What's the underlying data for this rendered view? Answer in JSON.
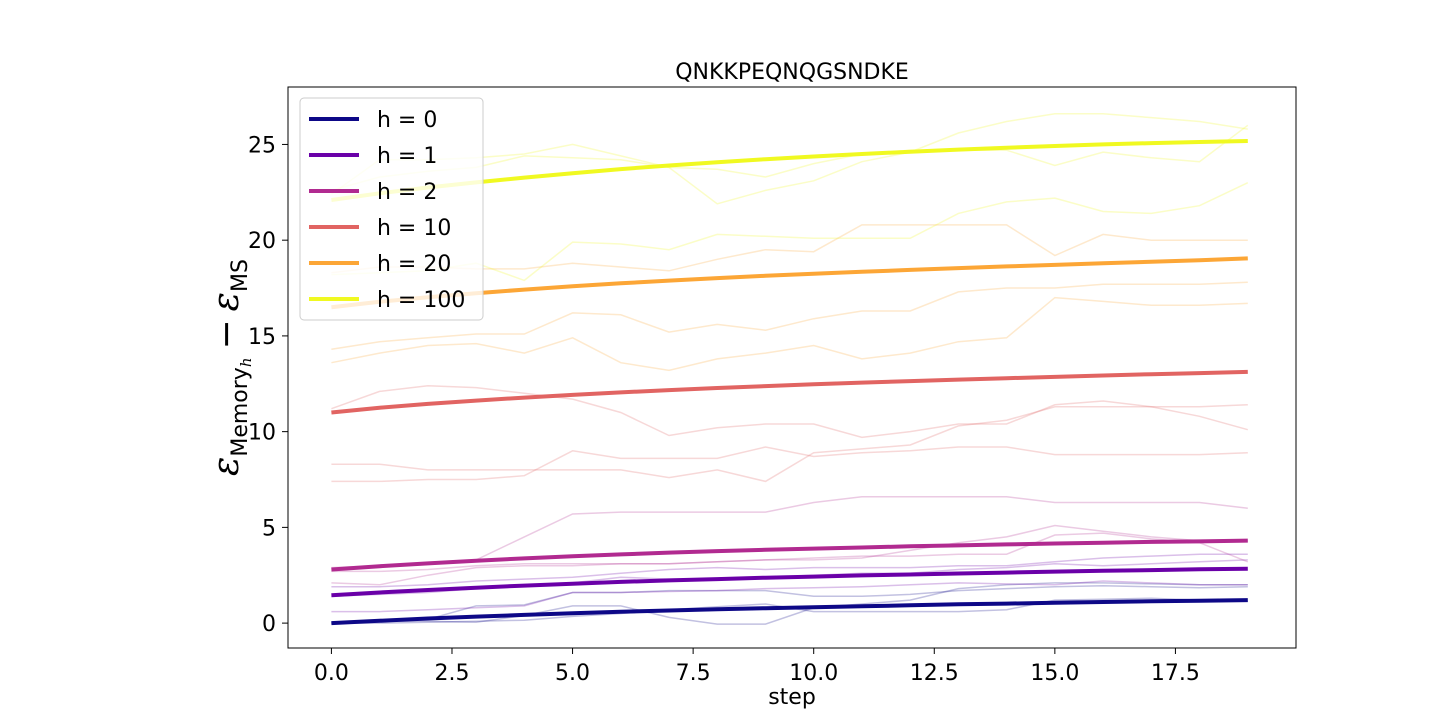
{
  "chart_data": {
    "type": "line",
    "title": "QNKKPEQNQGSNDKE",
    "xlabel": "step",
    "ylabel": {
      "epsilon": "ε",
      "sub1": "Memory",
      "sub1_sub": "h",
      "minus": "−",
      "sub2": "MS"
    },
    "xlim": [
      -0.9,
      20.0
    ],
    "ylim": [
      -1.3,
      28.0
    ],
    "xticks": [
      0.0,
      2.5,
      5.0,
      7.5,
      10.0,
      12.5,
      15.0,
      17.5
    ],
    "xtick_labels": [
      "0.0",
      "2.5",
      "5.0",
      "7.5",
      "10.0",
      "12.5",
      "15.0",
      "17.5"
    ],
    "yticks": [
      0,
      5,
      10,
      15,
      20,
      25
    ],
    "ytick_labels": [
      "0",
      "5",
      "10",
      "15",
      "20",
      "25"
    ],
    "grid": false,
    "legend_position": "top-left",
    "x": [
      0,
      1,
      2,
      3,
      4,
      5,
      6,
      7,
      8,
      9,
      10,
      11,
      12,
      13,
      14,
      15,
      16,
      17,
      18,
      19
    ],
    "series": [
      {
        "name": "h = 0",
        "color": "#0d0887",
        "values": [
          0.0,
          0.12,
          0.24,
          0.34,
          0.43,
          0.51,
          0.59,
          0.66,
          0.72,
          0.78,
          0.83,
          0.88,
          0.93,
          0.98,
          1.02,
          1.06,
          1.1,
          1.14,
          1.17,
          1.2
        ]
      },
      {
        "name": "h = 1",
        "color": "#6a00a8",
        "values": [
          1.45,
          1.6,
          1.73,
          1.85,
          1.96,
          2.06,
          2.15,
          2.23,
          2.3,
          2.37,
          2.43,
          2.49,
          2.54,
          2.59,
          2.64,
          2.69,
          2.73,
          2.77,
          2.81,
          2.84
        ]
      },
      {
        "name": "h = 2",
        "color": "#b12a90",
        "values": [
          2.8,
          2.97,
          3.12,
          3.26,
          3.38,
          3.49,
          3.59,
          3.68,
          3.76,
          3.83,
          3.89,
          3.95,
          4.01,
          4.06,
          4.11,
          4.16,
          4.2,
          4.24,
          4.27,
          4.31
        ]
      },
      {
        "name": "h = 10",
        "color": "#e16462",
        "values": [
          11.0,
          11.25,
          11.45,
          11.62,
          11.78,
          11.92,
          12.05,
          12.17,
          12.28,
          12.38,
          12.47,
          12.56,
          12.64,
          12.72,
          12.79,
          12.86,
          12.93,
          13.0,
          13.06,
          13.12
        ]
      },
      {
        "name": "h = 20",
        "color": "#fca636",
        "values": [
          16.5,
          16.78,
          17.02,
          17.23,
          17.42,
          17.59,
          17.75,
          17.89,
          18.02,
          18.14,
          18.25,
          18.35,
          18.45,
          18.54,
          18.63,
          18.71,
          18.79,
          18.87,
          18.95,
          19.05
        ]
      },
      {
        "name": "h = 100",
        "color": "#f0f921",
        "values": [
          22.1,
          22.45,
          22.75,
          23.02,
          23.27,
          23.5,
          23.71,
          23.9,
          24.07,
          24.23,
          24.37,
          24.5,
          24.62,
          24.73,
          24.83,
          24.92,
          25.0,
          25.07,
          25.13,
          25.18
        ]
      }
    ],
    "background_traces": [
      {
        "color": "#0d0887",
        "values": [
          0.0,
          0.0,
          0.05,
          0.1,
          0.15,
          0.35,
          0.5,
          0.7,
          0.85,
          1.0,
          0.6,
          0.6,
          0.6,
          0.6,
          0.7,
          1.2,
          1.25,
          1.3,
          1.2,
          1.15
        ]
      },
      {
        "color": "#0d0887",
        "values": [
          0.0,
          0.1,
          0.2,
          0.9,
          0.95,
          1.6,
          1.6,
          1.7,
          1.7,
          1.7,
          1.4,
          1.4,
          1.5,
          1.7,
          1.8,
          1.9,
          1.95,
          1.9,
          1.85,
          1.9
        ]
      },
      {
        "color": "#0d0887",
        "values": [
          0.05,
          0.1,
          0.1,
          0.05,
          0.4,
          0.9,
          0.9,
          0.3,
          -0.05,
          -0.05,
          0.8,
          1.0,
          1.2,
          1.8,
          2.0,
          2.1,
          2.1,
          2.05,
          2.0,
          2.0
        ]
      },
      {
        "color": "#6a00a8",
        "values": [
          0.6,
          0.6,
          0.7,
          0.8,
          0.9,
          1.6,
          1.6,
          1.65,
          1.7,
          1.8,
          1.85,
          1.9,
          2.0,
          2.1,
          2.05,
          2.0,
          2.2,
          2.1,
          2.0,
          2.0
        ]
      },
      {
        "color": "#6a00a8",
        "values": [
          1.4,
          1.5,
          1.6,
          1.8,
          2.0,
          2.1,
          2.4,
          2.3,
          2.3,
          2.4,
          2.5,
          2.6,
          2.6,
          2.8,
          2.9,
          3.1,
          3.0,
          3.1,
          3.2,
          3.3
        ]
      },
      {
        "color": "#6a00a8",
        "values": [
          1.9,
          1.9,
          2.0,
          2.2,
          2.3,
          2.4,
          2.6,
          2.8,
          2.9,
          2.8,
          2.9,
          2.9,
          2.9,
          3.0,
          3.0,
          3.2,
          3.4,
          3.5,
          3.6,
          3.6
        ]
      },
      {
        "color": "#b12a90",
        "values": [
          2.7,
          2.7,
          2.8,
          3.0,
          3.1,
          3.1,
          3.1,
          3.1,
          3.2,
          3.3,
          3.4,
          3.5,
          3.5,
          3.6,
          3.6,
          4.6,
          4.7,
          4.4,
          4.2,
          3.2
        ]
      },
      {
        "color": "#b12a90",
        "values": [
          2.1,
          2.0,
          2.5,
          2.9,
          3.0,
          3.0,
          3.1,
          3.1,
          3.2,
          3.3,
          3.3,
          3.4,
          3.8,
          4.2,
          4.5,
          5.1,
          4.8,
          4.5,
          4.3,
          4.3
        ]
      },
      {
        "color": "#b12a90",
        "values": [
          2.9,
          3.0,
          3.1,
          3.3,
          4.5,
          5.7,
          5.8,
          5.8,
          5.8,
          5.8,
          6.3,
          6.6,
          6.6,
          6.6,
          6.6,
          6.3,
          6.3,
          6.3,
          6.3,
          6.0
        ]
      },
      {
        "color": "#e16462",
        "values": [
          7.4,
          7.4,
          7.5,
          7.5,
          7.7,
          9.0,
          8.6,
          8.6,
          8.6,
          9.2,
          8.7,
          8.9,
          9.0,
          9.2,
          9.2,
          8.8,
          8.8,
          8.8,
          8.8,
          8.9
        ]
      },
      {
        "color": "#e16462",
        "values": [
          8.3,
          8.3,
          8.0,
          8.0,
          8.0,
          8.0,
          8.0,
          7.6,
          8.0,
          7.4,
          8.9,
          9.1,
          9.3,
          10.3,
          10.6,
          11.3,
          11.3,
          11.3,
          11.3,
          11.4
        ]
      },
      {
        "color": "#e16462",
        "values": [
          11.2,
          12.1,
          12.4,
          12.3,
          12.0,
          11.7,
          11.0,
          9.8,
          10.2,
          10.4,
          10.4,
          9.7,
          10.0,
          10.4,
          10.4,
          11.4,
          11.6,
          11.3,
          10.8,
          10.1
        ]
      },
      {
        "color": "#fca636",
        "values": [
          13.6,
          14.1,
          14.5,
          14.6,
          14.1,
          14.9,
          13.6,
          13.2,
          13.8,
          14.1,
          14.5,
          13.8,
          14.1,
          14.7,
          14.9,
          17.0,
          16.8,
          16.6,
          16.6,
          16.7
        ]
      },
      {
        "color": "#fca636",
        "values": [
          14.3,
          14.7,
          14.9,
          15.1,
          15.1,
          16.2,
          16.1,
          15.2,
          15.6,
          15.3,
          15.9,
          16.3,
          16.3,
          17.3,
          17.5,
          17.5,
          17.7,
          17.7,
          17.7,
          17.8
        ]
      },
      {
        "color": "#fca636",
        "values": [
          18.3,
          18.6,
          18.6,
          18.5,
          18.5,
          18.8,
          18.6,
          18.4,
          19.0,
          19.5,
          19.4,
          20.8,
          20.8,
          20.8,
          20.8,
          19.2,
          20.3,
          20.0,
          20.0,
          20.0
        ]
      },
      {
        "color": "#f0f921",
        "values": [
          18.2,
          18.3,
          18.4,
          18.8,
          17.9,
          19.9,
          19.8,
          19.5,
          20.3,
          20.2,
          20.1,
          20.1,
          20.1,
          21.4,
          22.0,
          22.2,
          21.5,
          21.4,
          21.8,
          23.0
        ]
      },
      {
        "color": "#f0f921",
        "values": [
          22.4,
          24.2,
          24.2,
          24.3,
          24.5,
          25.0,
          24.4,
          23.8,
          21.9,
          22.6,
          23.1,
          24.1,
          24.6,
          25.6,
          26.2,
          26.6,
          26.6,
          26.4,
          26.2,
          25.8
        ]
      },
      {
        "color": "#f0f921",
        "values": [
          22.6,
          23.3,
          23.6,
          23.8,
          24.4,
          24.3,
          24.2,
          23.8,
          23.7,
          23.3,
          24.0,
          24.5,
          24.7,
          24.7,
          24.7,
          23.9,
          24.6,
          24.3,
          24.1,
          26.0
        ]
      }
    ]
  }
}
